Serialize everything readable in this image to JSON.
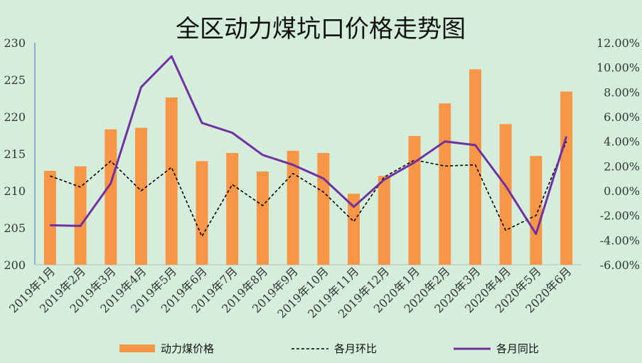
{
  "chart_data": {
    "type": "bar",
    "title": "全区动力煤坑口价格走势图",
    "categories": [
      "2019年1月",
      "2019年2月",
      "2019年3月",
      "2019年4月",
      "2019年5月",
      "2019年6月",
      "2019年7月",
      "2019年8月",
      "2019年9月",
      "2019年10月",
      "2019年11月",
      "2019年12月",
      "2020年1月",
      "2020年2月",
      "2020年3月",
      "2020年4月",
      "2020年5月",
      "2020年6月"
    ],
    "left_axis": {
      "ylim": [
        200,
        230
      ],
      "ticks": [
        "200",
        "205",
        "210",
        "215",
        "220",
        "225",
        "230"
      ]
    },
    "right_axis": {
      "ylim": [
        -6,
        12
      ],
      "ticks": [
        "-6.00%",
        "-4.00%",
        "-2.00%",
        "0.00%",
        "2.00%",
        "4.00%",
        "6.00%",
        "8.00%",
        "10.00%",
        "12.00%"
      ]
    },
    "series": [
      {
        "name": "动力煤价格",
        "type": "bar",
        "axis": "left",
        "color": "#f79646",
        "values": [
          212.7,
          213.3,
          218.3,
          218.5,
          222.6,
          214.0,
          215.1,
          212.6,
          215.4,
          215.1,
          209.6,
          212.0,
          217.4,
          221.8,
          226.4,
          219.0,
          214.7,
          223.4
        ]
      },
      {
        "name": "各月环比",
        "type": "line",
        "axis": "right",
        "color": "#000000",
        "dash": true,
        "values": [
          1.2,
          0.3,
          2.4,
          0.0,
          1.9,
          -3.7,
          0.5,
          -1.2,
          1.4,
          -0.1,
          -2.5,
          1.1,
          2.5,
          2.0,
          2.1,
          -3.2,
          -2.0,
          4.0
        ]
      },
      {
        "name": "各月同比",
        "type": "line",
        "axis": "right",
        "color": "#7030a0",
        "dash": false,
        "values": [
          -2.8,
          -2.85,
          0.6,
          8.4,
          10.9,
          5.5,
          4.7,
          2.9,
          2.1,
          1.0,
          -1.3,
          0.9,
          2.3,
          4.0,
          3.7,
          0.4,
          -3.5,
          4.4
        ]
      }
    ],
    "legend_position": "bottom"
  }
}
